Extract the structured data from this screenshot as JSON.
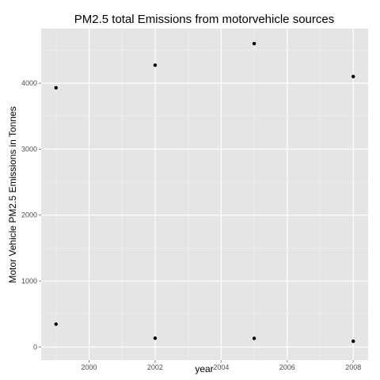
{
  "colors": {
    "panel": "#e5e5e5",
    "grid_major": "#ffffff",
    "grid_minor": "#f2f2f2",
    "point": "#000000",
    "tick_text": "#4d4d4d"
  },
  "chart_data": {
    "type": "scatter",
    "title": "PM2.5 total Emissions from motorvehicle sources",
    "xlabel": "year",
    "ylabel": "Motor Vehicle PM2.5 Emissions in Tonnes",
    "xlim": [
      1998.55,
      2008.45
    ],
    "ylim": [
      -200,
      4830
    ],
    "x_ticks": [
      2000,
      2002,
      2004,
      2006,
      2008
    ],
    "y_ticks": [
      0,
      1000,
      2000,
      3000,
      4000
    ],
    "x_minor": [
      1999,
      2001,
      2003,
      2005,
      2007
    ],
    "y_minor": [
      500,
      1500,
      2500,
      3500,
      4500
    ],
    "grid": true,
    "points": [
      {
        "x": 1999,
        "y": 3931
      },
      {
        "x": 1999,
        "y": 347
      },
      {
        "x": 2002,
        "y": 4274
      },
      {
        "x": 2002,
        "y": 134
      },
      {
        "x": 2005,
        "y": 4601
      },
      {
        "x": 2005,
        "y": 131
      },
      {
        "x": 2008,
        "y": 4101
      },
      {
        "x": 2008,
        "y": 88
      }
    ]
  }
}
